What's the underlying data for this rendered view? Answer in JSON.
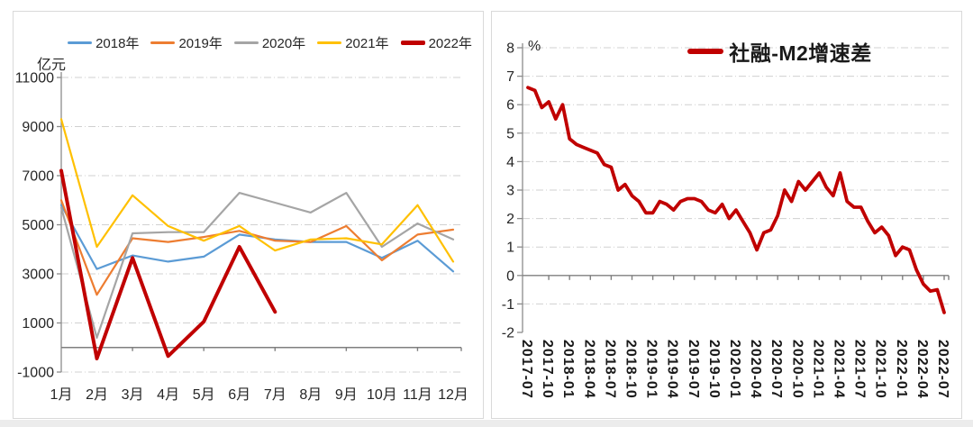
{
  "left_panel": {
    "unit_label": "亿元",
    "legend": [
      {
        "label": "2018年",
        "color": "#5B9BD5",
        "thick": false
      },
      {
        "label": "2019年",
        "color": "#ED7D31",
        "thick": false
      },
      {
        "label": "2020年",
        "color": "#A5A5A5",
        "thick": false
      },
      {
        "label": "2021年",
        "color": "#FFC000",
        "thick": false
      },
      {
        "label": "2022年",
        "color": "#C00000",
        "thick": true
      }
    ]
  },
  "right_panel": {
    "unit_label": "%",
    "legend": [
      {
        "label": "社融-M2增速差",
        "color": "#C00000",
        "thick": true
      }
    ]
  },
  "colors": {
    "gridline": "#d0d0d0",
    "axis": "#8c8c8c",
    "text": "#262626",
    "panel_border": "#d9d9d9"
  },
  "chart_data": [
    {
      "id": "left-monthly-by-year",
      "type": "line",
      "title": "",
      "ylabel_unit": "亿元",
      "categories": [
        "1月",
        "2月",
        "3月",
        "4月",
        "5月",
        "6月",
        "7月",
        "8月",
        "9月",
        "10月",
        "11月",
        "12月"
      ],
      "series": [
        {
          "name": "2018年",
          "color": "#5B9BD5",
          "width": 2.2,
          "values": [
            5800,
            3200,
            3750,
            3500,
            3700,
            4600,
            4400,
            4300,
            4300,
            3650,
            4350,
            3100
          ]
        },
        {
          "name": "2019年",
          "color": "#ED7D31",
          "width": 2.2,
          "values": [
            6000,
            2150,
            4450,
            4300,
            4500,
            4750,
            4350,
            4300,
            4950,
            3550,
            4600,
            4800
          ]
        },
        {
          "name": "2020年",
          "color": "#A5A5A5",
          "width": 2.2,
          "values": [
            5700,
            400,
            4650,
            4700,
            4700,
            6300,
            5900,
            5500,
            6300,
            4100,
            5050,
            4400
          ]
        },
        {
          "name": "2021年",
          "color": "#FFC000",
          "width": 2.2,
          "values": [
            9300,
            4100,
            6200,
            4950,
            4350,
            4950,
            3950,
            4400,
            4450,
            4200,
            5800,
            3500
          ]
        },
        {
          "name": "2022年",
          "color": "#C00000",
          "width": 4,
          "values": [
            7200,
            -450,
            3650,
            -350,
            1050,
            4100,
            1450
          ]
        }
      ],
      "ylim": [
        -1000,
        11000
      ],
      "yticks": [
        11000,
        9000,
        7000,
        5000,
        3000,
        1000,
        -1000
      ],
      "grid": "dashed-horizontal",
      "legend_position": "top"
    },
    {
      "id": "right-shehuirongzi-m2-spread",
      "type": "line",
      "title": "社融-M2增速差",
      "ylabel_unit": "%",
      "x_start": "2017-07",
      "x_step_months": 1,
      "x_tick_labels": [
        "2017-07",
        "2017-10",
        "2018-01",
        "2018-04",
        "2018-07",
        "2018-10",
        "2019-01",
        "2019-04",
        "2019-07",
        "2019-10",
        "2020-01",
        "2020-04",
        "2020-07",
        "2020-10",
        "2021-01",
        "2021-04",
        "2021-07",
        "2021-10",
        "2022-01",
        "2022-04",
        "2022-07"
      ],
      "series": [
        {
          "name": "社融-M2增速差",
          "color": "#C00000",
          "width": 3.8,
          "values": [
            6.6,
            6.5,
            5.9,
            6.1,
            5.5,
            6.0,
            4.8,
            4.6,
            4.5,
            4.4,
            4.3,
            3.9,
            3.8,
            3.0,
            3.2,
            2.8,
            2.6,
            2.2,
            2.2,
            2.6,
            2.5,
            2.3,
            2.6,
            2.7,
            2.7,
            2.6,
            2.3,
            2.2,
            2.5,
            2.0,
            2.3,
            1.9,
            1.5,
            0.9,
            1.5,
            1.6,
            2.1,
            3.0,
            2.6,
            3.3,
            3.0,
            3.3,
            3.6,
            3.1,
            2.8,
            3.6,
            2.6,
            2.4,
            2.4,
            1.9,
            1.5,
            1.7,
            1.4,
            0.7,
            1.0,
            0.9,
            0.2,
            -0.3,
            -0.55,
            -0.5,
            -1.3
          ]
        }
      ],
      "ylim": [
        -2,
        8
      ],
      "yticks": [
        8,
        7,
        6,
        5,
        4,
        3,
        2,
        1,
        0,
        -1,
        -2
      ],
      "grid": "dashed-horizontal",
      "legend_position": "top"
    }
  ]
}
